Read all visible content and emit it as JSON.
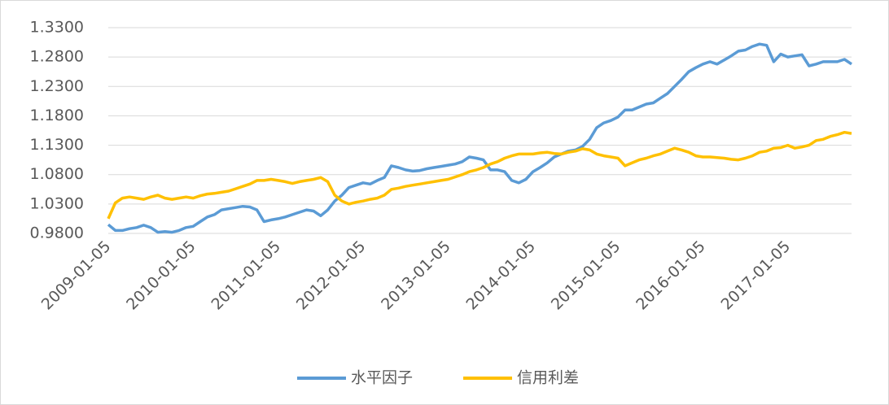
{
  "chart_data": {
    "type": "line",
    "categories": [
      "2009-01-05",
      null,
      null,
      null,
      null,
      null,
      null,
      null,
      null,
      null,
      null,
      null,
      "2010-01-05",
      null,
      null,
      null,
      null,
      null,
      null,
      null,
      null,
      null,
      null,
      null,
      "2011-01-05",
      null,
      null,
      null,
      null,
      null,
      null,
      null,
      null,
      null,
      null,
      null,
      "2012-01-05",
      null,
      null,
      null,
      null,
      null,
      null,
      null,
      null,
      null,
      null,
      null,
      "2013-01-05",
      null,
      null,
      null,
      null,
      null,
      null,
      null,
      null,
      null,
      null,
      null,
      "2014-01-05",
      null,
      null,
      null,
      null,
      null,
      null,
      null,
      null,
      null,
      null,
      null,
      "2015-01-05",
      null,
      null,
      null,
      null,
      null,
      null,
      null,
      null,
      null,
      null,
      null,
      "2016-01-05",
      null,
      null,
      null,
      null,
      null,
      null,
      null,
      null,
      null,
      null,
      null,
      "2017-01-05",
      null,
      null,
      null,
      null,
      null,
      null,
      null,
      null,
      null
    ],
    "series": [
      {
        "name": "水平因子",
        "color": "#5B9BD5",
        "values": [
          0.995,
          0.985,
          0.985,
          0.988,
          0.99,
          0.994,
          0.99,
          0.982,
          0.983,
          0.982,
          0.985,
          0.99,
          0.992,
          1.0,
          1.008,
          1.012,
          1.02,
          1.022,
          1.024,
          1.026,
          1.025,
          1.02,
          1.0,
          1.003,
          1.005,
          1.008,
          1.012,
          1.016,
          1.02,
          1.018,
          1.01,
          1.02,
          1.035,
          1.045,
          1.058,
          1.062,
          1.066,
          1.064,
          1.07,
          1.075,
          1.095,
          1.092,
          1.088,
          1.086,
          1.087,
          1.09,
          1.092,
          1.094,
          1.096,
          1.098,
          1.102,
          1.11,
          1.108,
          1.105,
          1.088,
          1.088,
          1.085,
          1.07,
          1.066,
          1.072,
          1.085,
          1.092,
          1.1,
          1.11,
          1.115,
          1.12,
          1.122,
          1.128,
          1.14,
          1.16,
          1.168,
          1.172,
          1.178,
          1.19,
          1.19,
          1.195,
          1.2,
          1.202,
          1.21,
          1.218,
          1.23,
          1.242,
          1.255,
          1.262,
          1.268,
          1.272,
          1.268,
          1.275,
          1.282,
          1.29,
          1.292,
          1.298,
          1.302,
          1.3,
          1.272,
          1.285,
          1.28,
          1.282,
          1.284,
          1.265,
          1.268,
          1.272,
          1.272,
          1.272,
          1.276,
          1.268
        ]
      },
      {
        "name": "信用利差",
        "color": "#FFC000",
        "values": [
          1.005,
          1.032,
          1.04,
          1.042,
          1.04,
          1.038,
          1.042,
          1.045,
          1.04,
          1.038,
          1.04,
          1.042,
          1.04,
          1.044,
          1.047,
          1.048,
          1.05,
          1.052,
          1.056,
          1.06,
          1.064,
          1.07,
          1.07,
          1.072,
          1.07,
          1.068,
          1.065,
          1.068,
          1.07,
          1.072,
          1.075,
          1.068,
          1.045,
          1.035,
          1.03,
          1.033,
          1.035,
          1.038,
          1.04,
          1.045,
          1.055,
          1.057,
          1.06,
          1.062,
          1.064,
          1.066,
          1.068,
          1.07,
          1.072,
          1.076,
          1.08,
          1.085,
          1.088,
          1.092,
          1.098,
          1.102,
          1.108,
          1.112,
          1.115,
          1.115,
          1.115,
          1.117,
          1.118,
          1.116,
          1.115,
          1.118,
          1.12,
          1.124,
          1.122,
          1.115,
          1.112,
          1.11,
          1.108,
          1.095,
          1.1,
          1.105,
          1.108,
          1.112,
          1.115,
          1.12,
          1.125,
          1.122,
          1.118,
          1.112,
          1.11,
          1.11,
          1.109,
          1.108,
          1.106,
          1.105,
          1.108,
          1.112,
          1.118,
          1.12,
          1.125,
          1.126,
          1.13,
          1.125,
          1.127,
          1.13,
          1.138,
          1.14,
          1.145,
          1.148,
          1.152,
          1.15
        ]
      }
    ],
    "ylim": [
      0.98,
      1.33
    ],
    "yticks": [
      {
        "value": 0.98,
        "label": "0.9800"
      },
      {
        "value": 1.03,
        "label": "1.0300"
      },
      {
        "value": 1.08,
        "label": "1.0800"
      },
      {
        "value": 1.13,
        "label": "1.1300"
      },
      {
        "value": 1.18,
        "label": "1.1800"
      },
      {
        "value": 1.23,
        "label": "1.2300"
      },
      {
        "value": 1.28,
        "label": "1.2800"
      },
      {
        "value": 1.33,
        "label": "1.3300"
      }
    ],
    "grid": true,
    "legend": "bottom"
  }
}
